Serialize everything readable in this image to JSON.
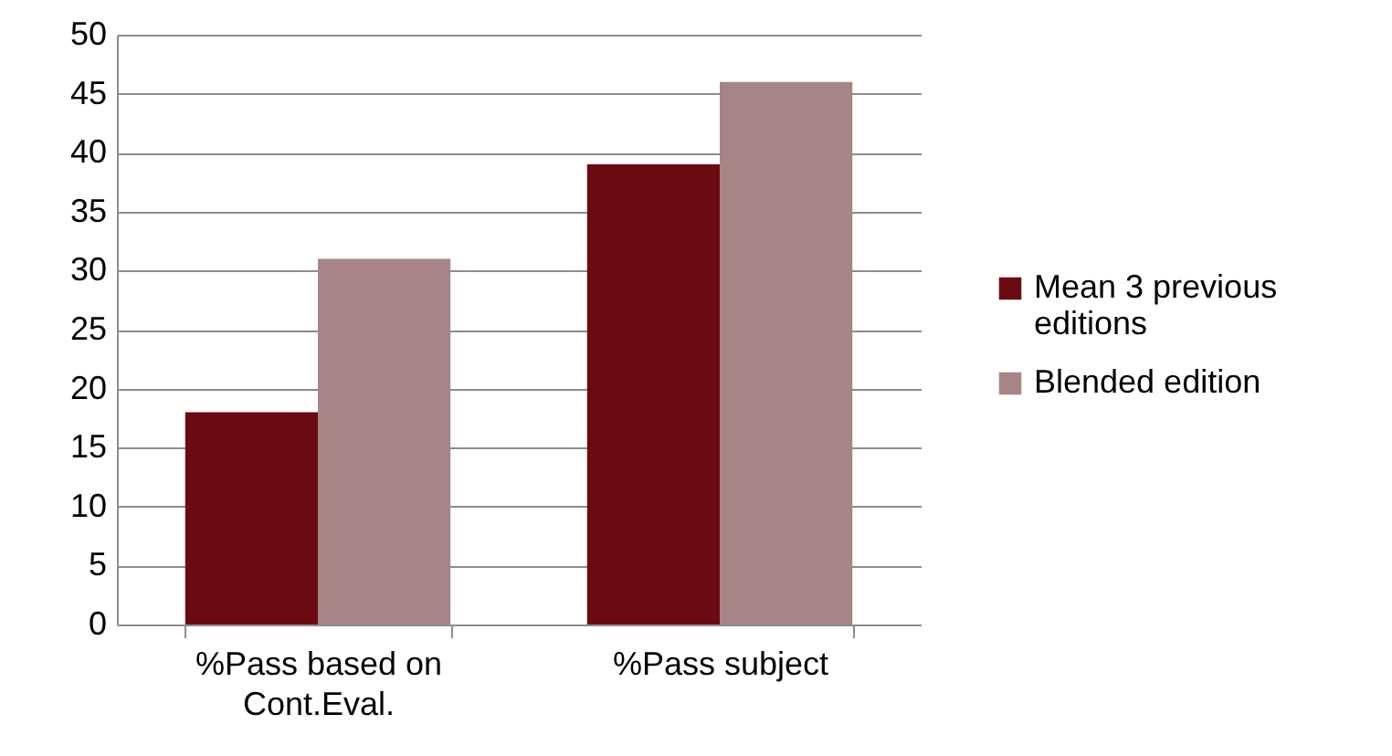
{
  "chart_data": {
    "type": "bar",
    "categories": [
      "%Pass based on Cont.Eval.",
      "%Pass subject"
    ],
    "series": [
      {
        "name": "Mean 3 previous editions",
        "color": "#6b0a12",
        "values": [
          18,
          39
        ]
      },
      {
        "name": "Blended edition",
        "color": "#a58585",
        "values": [
          31,
          46
        ]
      }
    ],
    "ylim": [
      0,
      50
    ],
    "yticks": [
      0,
      5,
      10,
      15,
      20,
      25,
      30,
      35,
      40,
      45,
      50
    ],
    "grid": "y",
    "legend": "right"
  }
}
